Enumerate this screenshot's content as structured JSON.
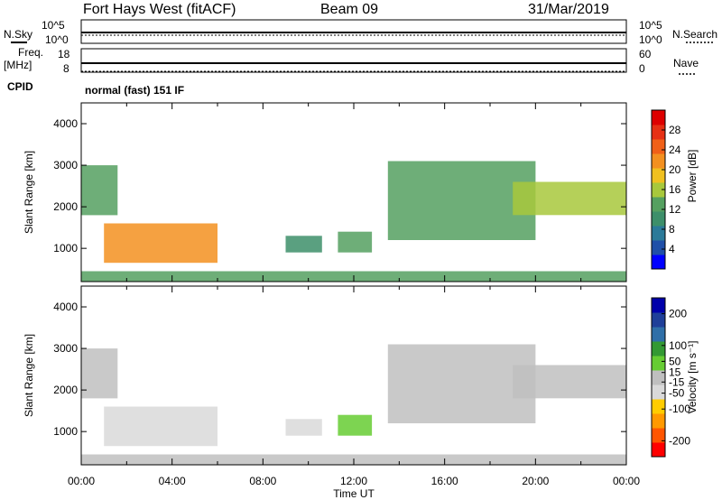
{
  "header": {
    "station": "Fort Hays West (fitACF)",
    "beam": "Beam 09",
    "date": "31/Mar/2019"
  },
  "top_panels": {
    "nsky_label": "N.Sky",
    "nsearch_label": "N.Search",
    "noise_ticks": [
      "10^5",
      "10^0"
    ],
    "noise_ticks_right": [
      "10^5",
      "10^0"
    ],
    "freq_label_1": "Freq.",
    "freq_label_2": "[MHz]",
    "freq_ticks": [
      "18",
      "8"
    ],
    "nave_label": "Nave",
    "nave_ticks": [
      "60",
      "0"
    ],
    "cpid_label": "CPID",
    "cpid_text": "normal (fast) 151 IF"
  },
  "colors": {
    "power": [
      "#0000ff",
      "#1f4fa8",
      "#2b7a99",
      "#3d8f6a",
      "#55a060",
      "#a8c83c",
      "#f0c020",
      "#f39020",
      "#f06018",
      "#e63014",
      "#dd0000"
    ],
    "velocity": [
      "#ff0000",
      "#ff5500",
      "#ff9900",
      "#ffcc00",
      "#d9d9d9",
      "#bfbfbf",
      "#66cc33",
      "#339933",
      "#2f6fa8",
      "#1f3f99",
      "#0000aa"
    ]
  },
  "chart_data": [
    {
      "type": "heatmap",
      "title": "",
      "xlabel": "Time UT",
      "ylabel": "Slant Range [km]",
      "xlim": [
        "00:00",
        "24:00"
      ],
      "ylim": [
        200,
        4500
      ],
      "x_ticks": [
        "00:00",
        "04:00",
        "08:00",
        "12:00",
        "16:00",
        "20:00",
        "00:00"
      ],
      "y_ticks": [
        "1000",
        "2000",
        "3000",
        "4000"
      ],
      "colorbar": {
        "label": "Power [dB]",
        "range": [
          0,
          32
        ],
        "ticks": [
          "4",
          "8",
          "12",
          "16",
          "20",
          "24",
          "28"
        ]
      },
      "regions": [
        {
          "t_start": 0.0,
          "t_end": 1.6,
          "range_start": 1800,
          "range_end": 3000,
          "power_db": 14
        },
        {
          "t_start": 1.0,
          "t_end": 6.0,
          "range_start": 650,
          "range_end": 1600,
          "power_db": 22
        },
        {
          "t_start": 9.0,
          "t_end": 10.6,
          "range_start": 900,
          "range_end": 1300,
          "power_db": 10
        },
        {
          "t_start": 11.3,
          "t_end": 12.8,
          "range_start": 900,
          "range_end": 1400,
          "power_db": 14
        },
        {
          "t_start": 13.5,
          "t_end": 20.0,
          "range_start": 1200,
          "range_end": 3100,
          "power_db": 14
        },
        {
          "t_start": 19.0,
          "t_end": 24.0,
          "range_start": 1800,
          "range_end": 2600,
          "power_db": 16
        },
        {
          "t_start": 0.0,
          "t_end": 24.0,
          "range_start": 200,
          "range_end": 450,
          "power_db": 12
        }
      ]
    },
    {
      "type": "heatmap",
      "title": "",
      "xlabel": "Time UT",
      "ylabel": "Slant Range [km]",
      "xlim": [
        "00:00",
        "24:00"
      ],
      "ylim": [
        200,
        4500
      ],
      "x_ticks": [
        "00:00",
        "04:00",
        "08:00",
        "12:00",
        "16:00",
        "20:00",
        "00:00"
      ],
      "y_ticks": [
        "1000",
        "2000",
        "3000",
        "4000"
      ],
      "colorbar": {
        "label": "Velocity [m s⁻¹]",
        "range": [
          -250,
          250
        ],
        "ticks": [
          "-200",
          "-100",
          "-50",
          "-15",
          "15",
          "50",
          "100",
          "200"
        ]
      },
      "regions": [
        {
          "t_start": 0.0,
          "t_end": 1.6,
          "range_start": 1800,
          "range_end": 3000,
          "velocity": 0
        },
        {
          "t_start": 1.0,
          "t_end": 6.0,
          "range_start": 650,
          "range_end": 1600,
          "velocity": -60
        },
        {
          "t_start": 9.0,
          "t_end": 10.6,
          "range_start": 900,
          "range_end": 1300,
          "velocity": -30
        },
        {
          "t_start": 11.3,
          "t_end": 12.8,
          "range_start": 900,
          "range_end": 1400,
          "velocity": 30
        },
        {
          "t_start": 13.5,
          "t_end": 20.0,
          "range_start": 1200,
          "range_end": 3100,
          "velocity": 0
        },
        {
          "t_start": 19.0,
          "t_end": 24.0,
          "range_start": 1800,
          "range_end": 2600,
          "velocity": 0
        },
        {
          "t_start": 0.0,
          "t_end": 24.0,
          "range_start": 200,
          "range_end": 450,
          "velocity": -20
        }
      ]
    }
  ]
}
